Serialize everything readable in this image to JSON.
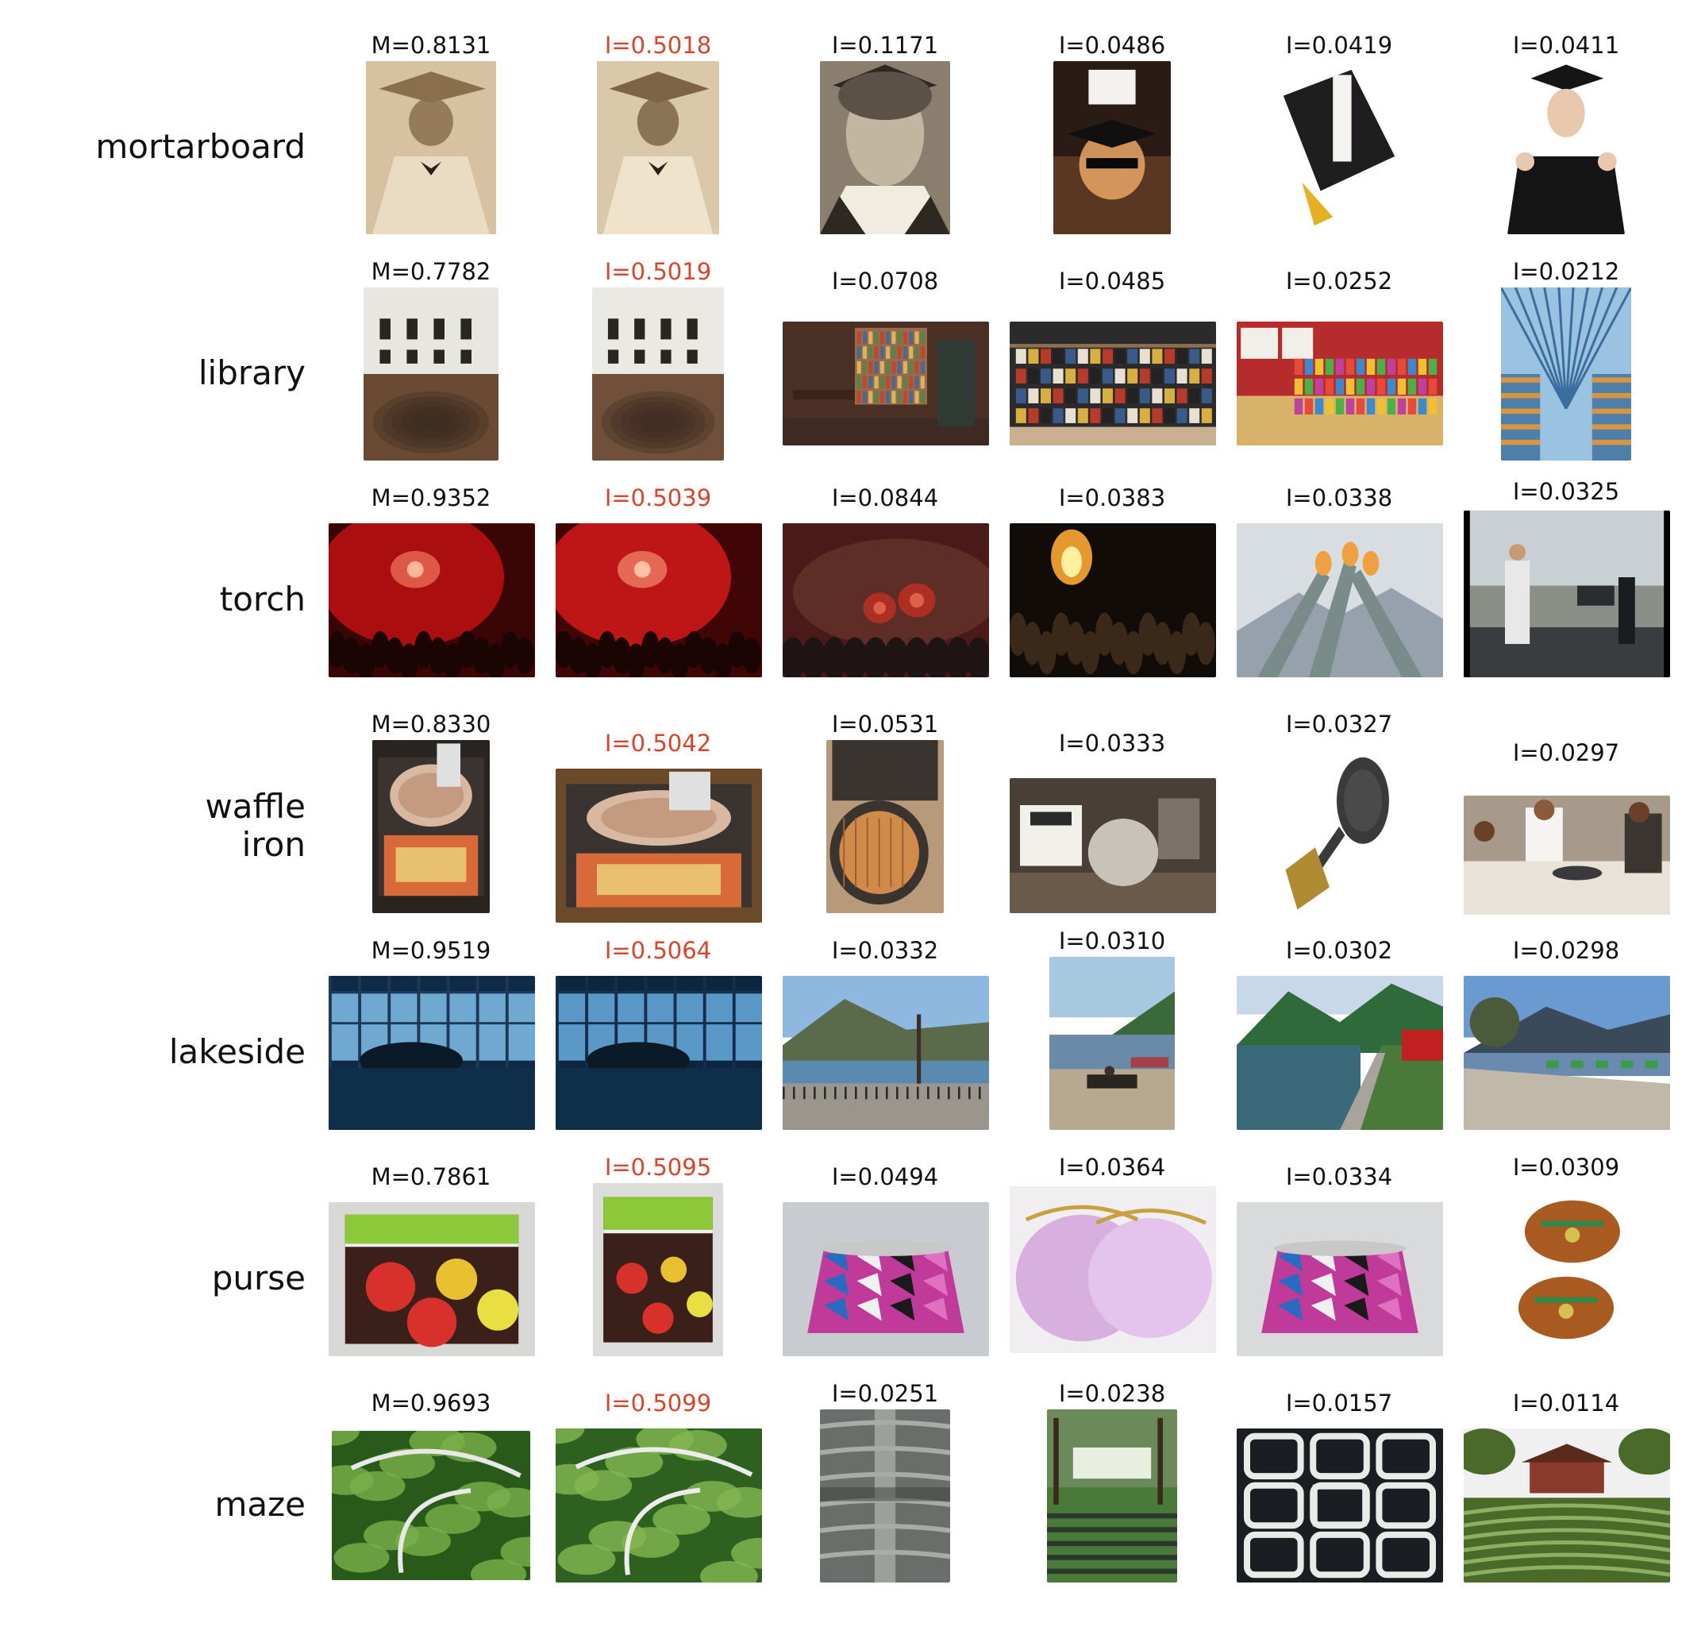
{
  "figure": {
    "rows": [
      {
        "label": "mortarboard",
        "cells": [
          {
            "score": "M=0.8131",
            "highlight": false,
            "image": "sepia-graduate-portrait",
            "colors": [
              "#c9b08a",
              "#8a6f4d",
              "#e9dcc3"
            ]
          },
          {
            "score": "I=0.5018",
            "highlight": true,
            "image": "sepia-graduate-portrait",
            "colors": [
              "#cbb592",
              "#7d6446",
              "#efe3cc"
            ]
          },
          {
            "score": "I=0.1171",
            "highlight": false,
            "image": "vintage-woman-portrait",
            "colors": [
              "#5b5146",
              "#2e2822",
              "#c9bca6"
            ]
          },
          {
            "score": "I=0.0486",
            "highlight": false,
            "image": "graduate-with-sunglasses",
            "colors": [
              "#2a1c14",
              "#7a4a2a",
              "#e0a060"
            ]
          },
          {
            "score": "I=0.0419",
            "highlight": false,
            "image": "cap-and-diploma",
            "colors": [
              "#ffffff",
              "#1e1e1e",
              "#e6b021"
            ]
          },
          {
            "score": "I=0.0411",
            "highlight": false,
            "image": "smiling-graduate-thumbs-up",
            "colors": [
              "#ffffff",
              "#151515",
              "#e8c9ad"
            ]
          }
        ]
      },
      {
        "label": "library",
        "cells": [
          {
            "score": "M=0.7782",
            "highlight": false,
            "image": "domed-reading-room",
            "colors": [
              "#e8e6e0",
              "#6b4a34",
              "#3b2a20"
            ]
          },
          {
            "score": "I=0.5019",
            "highlight": true,
            "image": "domed-reading-room",
            "colors": [
              "#ebe9e3",
              "#70503a",
              "#3e2c22"
            ]
          },
          {
            "score": "I=0.0708",
            "highlight": false,
            "image": "home-study-bookshelves",
            "colors": [
              "#4a2f25",
              "#9b6a4a",
              "#d7b08a"
            ]
          },
          {
            "score": "I=0.0485",
            "highlight": false,
            "image": "dvd-display-racks",
            "colors": [
              "#2b2b2b",
              "#c9b08e",
              "#8d6f4e"
            ]
          },
          {
            "score": "I=0.0252",
            "highlight": false,
            "image": "childrens-library-shelves",
            "colors": [
              "#b62b2b",
              "#d9b26a",
              "#f0efe8"
            ]
          },
          {
            "score": "I=0.0212",
            "highlight": false,
            "image": "glass-atrium-library",
            "colors": [
              "#3b6e9c",
              "#9ac3e2",
              "#d99540"
            ]
          }
        ]
      },
      {
        "label": "torch",
        "cells": [
          {
            "score": "M=0.9352",
            "highlight": false,
            "image": "red-flares-crowd",
            "colors": [
              "#c01010",
              "#3a0505",
              "#ff8a6a"
            ]
          },
          {
            "score": "I=0.5039",
            "highlight": true,
            "image": "red-flares-crowd",
            "colors": [
              "#d51a1a",
              "#400606",
              "#ffa080"
            ]
          },
          {
            "score": "I=0.0844",
            "highlight": false,
            "image": "flares-in-smoke",
            "colors": [
              "#4a1a18",
              "#d03020",
              "#1e1414"
            ]
          },
          {
            "score": "I=0.0383",
            "highlight": false,
            "image": "bonfire-night-crowd",
            "colors": [
              "#120c08",
              "#f0a030",
              "#3a2818"
            ]
          },
          {
            "score": "I=0.0338",
            "highlight": false,
            "image": "olympic-cauldron",
            "colors": [
              "#d8dde2",
              "#7a8c8a",
              "#f0a040"
            ]
          },
          {
            "score": "I=0.0325",
            "highlight": false,
            "image": "torch-relay-runner",
            "colors": [
              "#8a8f88",
              "#e8e8e8",
              "#3a3d40"
            ]
          }
        ]
      },
      {
        "label": "waffle\niron",
        "cells": [
          {
            "score": "M=0.8330",
            "highlight": false,
            "image": "ice-cream-on-waffle-iron",
            "colors": [
              "#2a2420",
              "#d86a3a",
              "#e8c070"
            ]
          },
          {
            "score": "I=0.5042",
            "highlight": true,
            "image": "ice-cream-on-waffle-iron",
            "colors": [
              "#6b4a2a",
              "#d86a3a",
              "#e8c070"
            ]
          },
          {
            "score": "I=0.0531",
            "highlight": false,
            "image": "waffle-in-maker",
            "colors": [
              "#3a3430",
              "#d08a4a",
              "#b89a7a"
            ]
          },
          {
            "score": "I=0.0333",
            "highlight": false,
            "image": "waffle-maker-and-box",
            "colors": [
              "#4a3f36",
              "#c8c2b8",
              "#8a8078"
            ]
          },
          {
            "score": "I=0.0327",
            "highlight": false,
            "image": "cast-iron-waffle-iron",
            "colors": [
              "#ffffff",
              "#3a3a3a",
              "#b08a30"
            ]
          },
          {
            "score": "I=0.0297",
            "highlight": false,
            "image": "street-crepe-stall",
            "colors": [
              "#a89a8a",
              "#e8e2d8",
              "#3a3530"
            ]
          }
        ]
      },
      {
        "label": "lakeside",
        "cells": [
          {
            "score": "M=0.9519",
            "highlight": false,
            "image": "indoor-pool-window-view",
            "colors": [
              "#0e2a44",
              "#6fa8d0",
              "#1c3a58"
            ]
          },
          {
            "score": "I=0.5064",
            "highlight": true,
            "image": "indoor-pool-window-view",
            "colors": [
              "#0c2640",
              "#5a98c8",
              "#152f4a"
            ]
          },
          {
            "score": "I=0.0332",
            "highlight": false,
            "image": "lake-promenade-tree",
            "colors": [
              "#8fb8e0",
              "#5a6a4a",
              "#9a968e"
            ]
          },
          {
            "score": "I=0.0310",
            "highlight": false,
            "image": "bench-by-lake",
            "colors": [
              "#a8c8e0",
              "#6a8aa8",
              "#b8a890"
            ]
          },
          {
            "score": "I=0.0302",
            "highlight": false,
            "image": "lake-with-train",
            "colors": [
              "#3a6a7a",
              "#2f6a3a",
              "#c8d8e8"
            ]
          },
          {
            "score": "I=0.0298",
            "highlight": false,
            "image": "lakeside-walkway",
            "colors": [
              "#6a9ad0",
              "#4a5a3a",
              "#c0b8a8"
            ]
          }
        ]
      },
      {
        "label": "purse",
        "cells": [
          {
            "score": "M=0.7861",
            "highlight": false,
            "image": "apple-print-pouch",
            "colors": [
              "#d8d8d6",
              "#3a2018",
              "#8cc83a"
            ]
          },
          {
            "score": "I=0.5095",
            "highlight": true,
            "image": "apple-print-pouch",
            "colors": [
              "#dcdcda",
              "#3a2018",
              "#8cc83a"
            ]
          },
          {
            "score": "I=0.0494",
            "highlight": false,
            "image": "geometric-frame-purse",
            "colors": [
              "#c8ccd0",
              "#c03a9a",
              "#2a6ac0"
            ]
          },
          {
            "score": "I=0.0364",
            "highlight": false,
            "image": "lilac-satin-clutch",
            "colors": [
              "#f0eef0",
              "#d8b0e0",
              "#c8a040"
            ]
          },
          {
            "score": "I=0.0334",
            "highlight": false,
            "image": "geometric-frame-purse",
            "colors": [
              "#d8dadc",
              "#c03a9a",
              "#2a6ac0"
            ]
          },
          {
            "score": "I=0.0309",
            "highlight": false,
            "image": "leather-coin-purses",
            "colors": [
              "#ffffff",
              "#a85a20",
              "#2a8a4a"
            ]
          }
        ]
      },
      {
        "label": "maze",
        "cells": [
          {
            "score": "M=0.9693",
            "highlight": false,
            "image": "hedge-maze-trellis",
            "colors": [
              "#2a5a1a",
              "#7ab04a",
              "#e8e8e8"
            ]
          },
          {
            "score": "I=0.5099",
            "highlight": true,
            "image": "hedge-maze-trellis",
            "colors": [
              "#2e6020",
              "#84b850",
              "#ececec"
            ]
          },
          {
            "score": "I=0.0251",
            "highlight": false,
            "image": "pebble-labyrinth",
            "colors": [
              "#6a6e6a",
              "#a8aca8",
              "#3a3e3a"
            ]
          },
          {
            "score": "I=0.0238",
            "highlight": false,
            "image": "garden-maze-house",
            "colors": [
              "#4a7a3a",
              "#e8eee0",
              "#2a3a2a"
            ]
          },
          {
            "score": "I=0.0157",
            "highlight": false,
            "image": "carved-maze-pattern",
            "colors": [
              "#1a1e22",
              "#e8ece8",
              "#6a7070"
            ]
          },
          {
            "score": "I=0.0114",
            "highlight": false,
            "image": "hedge-maze-pavilion",
            "colors": [
              "#4a6a2a",
              "#8a3a2a",
              "#f0f0f0"
            ]
          }
        ]
      }
    ]
  }
}
